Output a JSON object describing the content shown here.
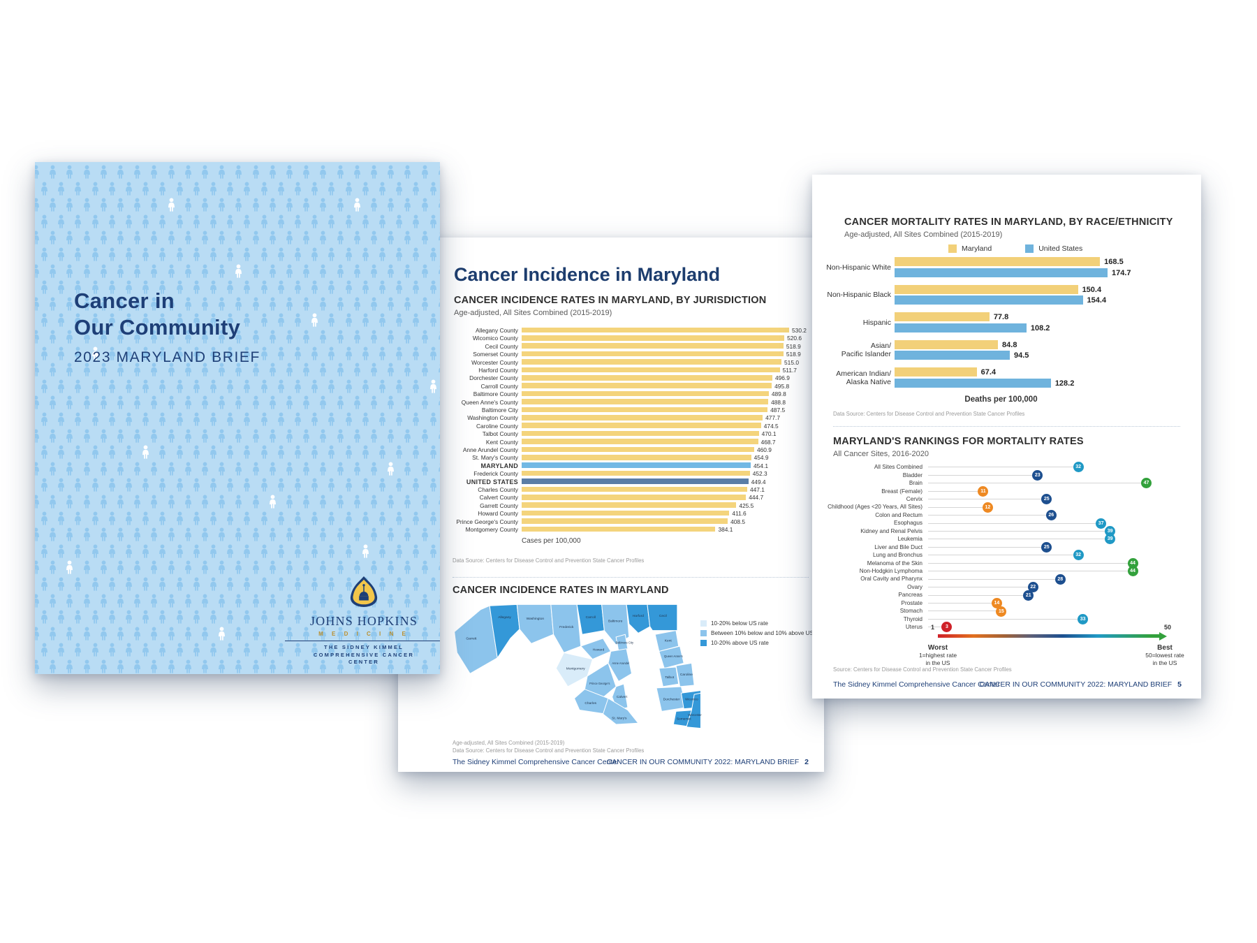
{
  "cover": {
    "title_line1": "Cancer in",
    "title_line2": "Our Community",
    "subtitle": "2023 MARYLAND BRIEF",
    "logo": {
      "institution": "JOHNS HOPKINS",
      "division": "M E D I C I N E",
      "center": [
        "THE SIDNEY KIMMEL",
        "COMPREHENSIVE CANCER",
        "CENTER"
      ]
    },
    "colors": {
      "background": "#b9dcf4",
      "pattern_icon": "#92c8ee",
      "accent_icon": "#ffffff",
      "title": "#1e3f77"
    }
  },
  "incidence_page": {
    "page_title": "Cancer Incidence in Maryland",
    "bar_chart": {
      "type": "bar",
      "title": "CANCER INCIDENCE RATES IN MARYLAND, BY JURISDICTION",
      "subtitle": "Age-adjusted, All Sites Combined (2015-2019)",
      "axis_label": "Cases per 100,000",
      "source": "Data Source: Centers for Disease Control and Prevention State Cancer Profiles",
      "colors": {
        "county": "#f4d47c",
        "state": "#72b8e4",
        "nation": "#5a7da6"
      },
      "rows": [
        {
          "label": "Allegany County",
          "value": 530.2,
          "display": "530.2",
          "kind": "county"
        },
        {
          "label": "Wicomico County",
          "value": 520.6,
          "display": "520.6",
          "kind": "county"
        },
        {
          "label": "Cecil County",
          "value": 518.9,
          "display": "518.9",
          "kind": "county"
        },
        {
          "label": "Somerset County",
          "value": 518.9,
          "display": "518.9",
          "kind": "county"
        },
        {
          "label": "Worcester County",
          "value": 515.0,
          "display": "515.0",
          "kind": "county"
        },
        {
          "label": "Harford County",
          "value": 511.7,
          "display": "511.7",
          "kind": "county"
        },
        {
          "label": "Dorchester County",
          "value": 496.9,
          "display": "496.9",
          "kind": "county"
        },
        {
          "label": "Carroll County",
          "value": 495.8,
          "display": "495.8",
          "kind": "county"
        },
        {
          "label": "Baltimore County",
          "value": 489.8,
          "display": "489.8",
          "kind": "county"
        },
        {
          "label": "Queen Anne's County",
          "value": 488.8,
          "display": "488.8",
          "kind": "county"
        },
        {
          "label": "Baltimore City",
          "value": 487.5,
          "display": "487.5",
          "kind": "county"
        },
        {
          "label": "Washington County",
          "value": 477.7,
          "display": "477.7",
          "kind": "county"
        },
        {
          "label": "Caroline County",
          "value": 474.5,
          "display": "474.5",
          "kind": "county"
        },
        {
          "label": "Talbot County",
          "value": 470.1,
          "display": "470.1",
          "kind": "county"
        },
        {
          "label": "Kent County",
          "value": 468.7,
          "display": "468.7",
          "kind": "county"
        },
        {
          "label": "Anne Arundel County",
          "value": 460.9,
          "display": "460.9",
          "kind": "county"
        },
        {
          "label": "St. Mary's County",
          "value": 454.9,
          "display": "454.9",
          "kind": "county"
        },
        {
          "label": "MARYLAND",
          "value": 454.1,
          "display": "454.1",
          "kind": "state"
        },
        {
          "label": "Frederick County",
          "value": 452.3,
          "display": "452.3",
          "kind": "county"
        },
        {
          "label": "UNITED STATES",
          "value": 449.4,
          "display": "449.4",
          "kind": "nation"
        },
        {
          "label": "Charles County",
          "value": 447.1,
          "display": "447.1",
          "kind": "county"
        },
        {
          "label": "Calvert County",
          "value": 444.7,
          "display": "444.7",
          "kind": "county"
        },
        {
          "label": "Garrett County",
          "value": 425.5,
          "display": "425.5",
          "kind": "county"
        },
        {
          "label": "Howard County",
          "value": 411.6,
          "display": "411.6",
          "kind": "county"
        },
        {
          "label": "Prince George's County",
          "value": 408.5,
          "display": "408.5",
          "kind": "county"
        },
        {
          "label": "Montgomery County",
          "value": 384.1,
          "display": "384.1",
          "kind": "county"
        }
      ]
    },
    "map_section": {
      "title": "CANCER INCIDENCE RATES IN MARYLAND",
      "legend": [
        {
          "label": "10-20% below US rate",
          "color": "#d9ecf9"
        },
        {
          "label": "Between 10% below and 10% above US rate",
          "color": "#8cc4ec"
        },
        {
          "label": "10-20% above US rate",
          "color": "#3498d8"
        }
      ],
      "counties": [
        "Garrett",
        "Allegany",
        "Washington",
        "Frederick",
        "Carroll",
        "Baltimore",
        "Harford",
        "Cecil",
        "Baltimore City",
        "Howard",
        "Montgomery",
        "Anne Arundel",
        "Prince George's",
        "Charles",
        "Calvert",
        "St. Mary's",
        "Kent",
        "Queen Anne's",
        "Caroline",
        "Talbot",
        "Dorchester",
        "Wicomico",
        "Somerset",
        "Worcester"
      ],
      "footnote1": "Age-adjusted, All Sites Combined (2015-2019)",
      "footnote2": "Data Source: Centers for Disease Control and Prevention State Cancer Profiles"
    },
    "footer": {
      "left": "The Sidney Kimmel Comprehensive Cancer Center",
      "right": "CANCER IN OUR COMMUNITY 2022: MARYLAND BRIEF",
      "page": "2"
    }
  },
  "mortality_page": {
    "race_chart": {
      "type": "bar",
      "title": "CANCER MORTALITY RATES IN MARYLAND, BY RACE/ETHNICITY",
      "subtitle": "Age-adjusted, All Sites Combined (2015-2019)",
      "axis_label": "Deaths per 100,000",
      "source": "Data Source: Centers for Disease Control and Prevention State Cancer Profiles",
      "legend": [
        {
          "label": "Maryland",
          "color": "#f2d079"
        },
        {
          "label": "United States",
          "color": "#6fb3dd"
        }
      ],
      "groups": [
        {
          "label": [
            "Non-Hispanic White"
          ],
          "maryland": 168.5,
          "md_display": "168.5",
          "us": 174.7,
          "us_display": "174.7"
        },
        {
          "label": [
            "Non-Hispanic Black"
          ],
          "maryland": 150.4,
          "md_display": "150.4",
          "us": 154.4,
          "us_display": "154.4"
        },
        {
          "label": [
            "Hispanic"
          ],
          "maryland": 77.8,
          "md_display": "77.8",
          "us": 108.2,
          "us_display": "108.2"
        },
        {
          "label": [
            "Asian/",
            "Pacific Islander"
          ],
          "maryland": 84.8,
          "md_display": "84.8",
          "us": 94.5,
          "us_display": "94.5"
        },
        {
          "label": [
            "American Indian/",
            "Alaska Native"
          ],
          "maryland": 67.4,
          "md_display": "67.4",
          "us": 128.2,
          "us_display": "128.2"
        }
      ]
    },
    "rankings": {
      "type": "scatter",
      "title": "MARYLAND'S RANKINGS FOR MORTALITY RATES",
      "subtitle": "All Cancer Sites, 2016-2020",
      "source": "Source: Centers for Disease Control and Prevention State Cancer Profiles",
      "axis": {
        "min_label": "1",
        "max_label": "50",
        "worst": [
          "Worst",
          "1=highest rate",
          "in the US"
        ],
        "best": [
          "Best",
          "50=lowest rate",
          "in the US"
        ]
      },
      "rows": [
        {
          "label": "All Sites Combined",
          "rank": 32,
          "color": "#2099c5"
        },
        {
          "label": "Bladder",
          "rank": 23,
          "color": "#1d4f8f"
        },
        {
          "label": "Brain",
          "rank": 47,
          "color": "#33a13c"
        },
        {
          "label": "Breast (Female)",
          "rank": 11,
          "color": "#ee8922"
        },
        {
          "label": "Cervix",
          "rank": 25,
          "color": "#1d4f8f"
        },
        {
          "label": "Childhood (Ages <20 Years, All Sites)",
          "rank": 12,
          "color": "#ee8922"
        },
        {
          "label": "Colon and Rectum",
          "rank": 26,
          "color": "#1d4f8f"
        },
        {
          "label": "Esophagus",
          "rank": 37,
          "color": "#2099c5"
        },
        {
          "label": "Kidney and Renal Pelvis",
          "rank": 39,
          "color": "#2099c5"
        },
        {
          "label": "Leukemia",
          "rank": 39,
          "color": "#2099c5"
        },
        {
          "label": "Liver and Bile Duct",
          "rank": 25,
          "color": "#1d4f8f"
        },
        {
          "label": "Lung and Bronchus",
          "rank": 32,
          "color": "#2099c5"
        },
        {
          "label": "Melanoma of the Skin",
          "rank": 44,
          "color": "#33a13c"
        },
        {
          "label": "Non-Hodgkin Lymphoma",
          "rank": 44,
          "color": "#33a13c"
        },
        {
          "label": "Oral Cavity and Pharynx",
          "rank": 28,
          "color": "#1d4f8f"
        },
        {
          "label": "Ovary",
          "rank": 22,
          "color": "#1d4f8f"
        },
        {
          "label": "Pancreas",
          "rank": 21,
          "color": "#1d4f8f"
        },
        {
          "label": "Prostate",
          "rank": 14,
          "color": "#ee8922"
        },
        {
          "label": "Stomach",
          "rank": 15,
          "color": "#ee8922"
        },
        {
          "label": "Thyroid",
          "rank": 33,
          "color": "#2099c5"
        },
        {
          "label": "Uterus",
          "rank": 3,
          "color": "#cf2128"
        }
      ]
    },
    "footer": {
      "left": "The Sidney Kimmel Comprehensive Cancer Center",
      "right": "CANCER IN OUR COMMUNITY 2022: MARYLAND BRIEF",
      "page": "5"
    }
  }
}
